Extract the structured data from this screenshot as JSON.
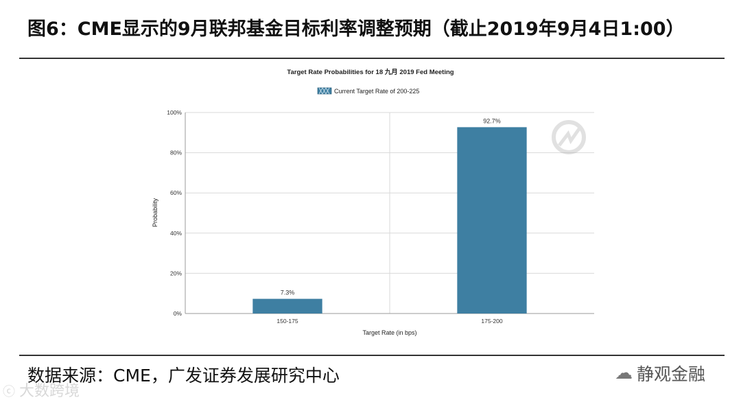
{
  "page": {
    "figure_title": "图6：CME显示的9月联邦基金目标利率调整预期（截止2019年9月4日1:00）",
    "source": "数据来源：CME，广发证券发展研究中心",
    "watermark_left": "大数跨境",
    "watermark_right": "静观金融"
  },
  "chart_data": {
    "type": "bar",
    "title": "Target Rate Probabilities for 18 九月 2019 Fed Meeting",
    "legend": {
      "label": "Current Target Rate of 200-225",
      "position": "top"
    },
    "xlabel": "Target Rate (in bps)",
    "ylabel": "Probability",
    "categories": [
      "150-175",
      "175-200"
    ],
    "values": [
      7.3,
      92.7
    ],
    "data_labels": [
      "7.3%",
      "92.7%"
    ],
    "ylim": [
      0,
      100
    ],
    "yticks": [
      0,
      20,
      40,
      60,
      80,
      100
    ],
    "ytick_labels": [
      "0%",
      "20%",
      "40%",
      "60%",
      "80%",
      "100%"
    ],
    "grid": true,
    "bar_color": "#3e7fa2",
    "grid_color": "#d9d9d9"
  }
}
